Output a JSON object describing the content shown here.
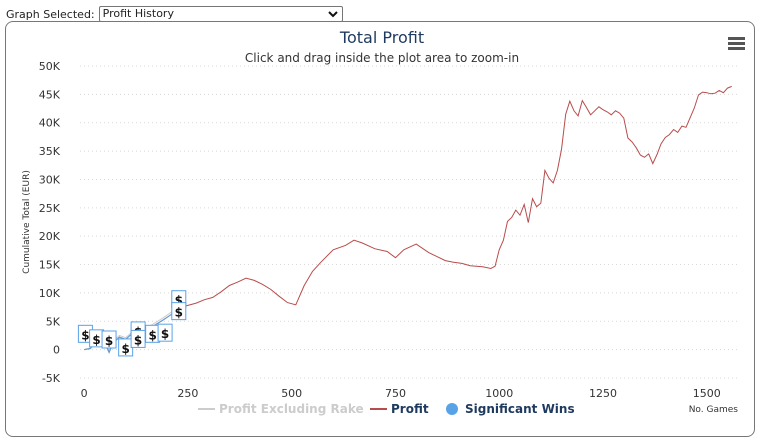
{
  "header": {
    "label": "Graph Selected:",
    "selected": "Profit History",
    "options": [
      "Profit History"
    ]
  },
  "menu_icon": "hamburger-menu-icon",
  "colors": {
    "profit": "#b84c4c",
    "profit_excl_rake": "#cccccc",
    "significant": "#5aa2e6",
    "title": "#1f3a5f",
    "grid": "#d8d8d8"
  },
  "chart_data": {
    "type": "line",
    "title": "Total Profit",
    "subtitle": "Click and drag inside the plot area to zoom-in",
    "xlabel": "No. Games",
    "ylabel": "Cumulative Total (EUR)",
    "xlim": [
      -10,
      1580
    ],
    "ylim": [
      -5000,
      50000
    ],
    "x_ticks": [
      "0",
      "250",
      "500",
      "750",
      "1000",
      "1250",
      "1500"
    ],
    "y_ticks": [
      "-5K",
      "0",
      "5K",
      "10K",
      "15K",
      "20K",
      "25K",
      "30K",
      "35K",
      "40K",
      "45K",
      "50K"
    ],
    "grid": true,
    "legend": {
      "position": "bottom",
      "items": [
        "Profit Excluding Rake",
        "Profit",
        "Significant Wins"
      ]
    },
    "series": [
      {
        "name": "Profit",
        "x": [
          0,
          15,
          30,
          45,
          55,
          60,
          70,
          85,
          100,
          115,
          130,
          150,
          170,
          190,
          210,
          230,
          250,
          270,
          290,
          310,
          330,
          350,
          370,
          390,
          410,
          430,
          450,
          470,
          490,
          510,
          530,
          550,
          570,
          600,
          630,
          650,
          670,
          700,
          730,
          750,
          770,
          800,
          830,
          850,
          870,
          890,
          910,
          930,
          960,
          980,
          990,
          1000,
          1010,
          1020,
          1030,
          1040,
          1050,
          1060,
          1070,
          1080,
          1090,
          1100,
          1110,
          1120,
          1130,
          1140,
          1150,
          1160,
          1170,
          1180,
          1190,
          1200,
          1210,
          1220,
          1230,
          1240,
          1250,
          1260,
          1270,
          1280,
          1290,
          1300,
          1310,
          1320,
          1330,
          1340,
          1350,
          1360,
          1370,
          1380,
          1390,
          1400,
          1410,
          1420,
          1430,
          1440,
          1450,
          1460,
          1470,
          1480,
          1490,
          1500,
          1510,
          1520,
          1530,
          1540,
          1550,
          1560
        ],
        "y": [
          0,
          200,
          1500,
          1800,
          300,
          -500,
          1200,
          2200,
          1800,
          2800,
          3100,
          3400,
          4300,
          5200,
          6200,
          7400,
          7800,
          8200,
          8800,
          9200,
          10200,
          11300,
          11900,
          12600,
          12200,
          11500,
          10600,
          9400,
          8300,
          7900,
          11300,
          13800,
          15400,
          17600,
          18400,
          19300,
          18800,
          17800,
          17300,
          16200,
          17600,
          18600,
          17100,
          16400,
          15700,
          15400,
          15200,
          14800,
          14600,
          14300,
          14700,
          17600,
          19300,
          22600,
          23300,
          24600,
          23700,
          25600,
          22400,
          26600,
          25200,
          25800,
          31600,
          30200,
          29400,
          31600,
          35300,
          41500,
          43800,
          42100,
          41200,
          43900,
          42700,
          41400,
          42100,
          42800,
          42300,
          41900,
          41400,
          42100,
          41700,
          40800,
          37300,
          36600,
          35600,
          34300,
          33900,
          34500,
          32800,
          34400,
          36300,
          37400,
          37900,
          38800,
          38300,
          39400,
          39200,
          40900,
          42600,
          44900,
          45400,
          45300,
          45100,
          45200,
          45700,
          45300,
          46100,
          46400
        ]
      },
      {
        "name": "Profit Excluding Rake",
        "x": [
          0,
          15,
          30,
          45,
          55,
          60,
          70,
          85,
          100,
          115,
          130,
          150,
          170,
          190,
          210,
          230
        ],
        "y": [
          0,
          300,
          1700,
          2100,
          700,
          -200,
          1500,
          2500,
          2100,
          3100,
          3400,
          3800,
          4700,
          5600,
          6600,
          7700
        ]
      },
      {
        "name": "Significant Wins",
        "flags": [
          {
            "x": 3,
            "y": 2700,
            "label": "$"
          },
          {
            "x": 30,
            "y": 1900,
            "label": "$"
          },
          {
            "x": 60,
            "y": 1700,
            "label": "$"
          },
          {
            "x": 100,
            "y": 300,
            "label": "$"
          },
          {
            "x": 130,
            "y": 3300,
            "label": "$"
          },
          {
            "x": 130,
            "y": 1800,
            "label": "$"
          },
          {
            "x": 165,
            "y": 2700,
            "label": "$"
          },
          {
            "x": 195,
            "y": 2900,
            "label": "$"
          },
          {
            "x": 228,
            "y": 8800,
            "label": "$"
          },
          {
            "x": 228,
            "y": 6700,
            "label": "$"
          }
        ]
      }
    ]
  }
}
